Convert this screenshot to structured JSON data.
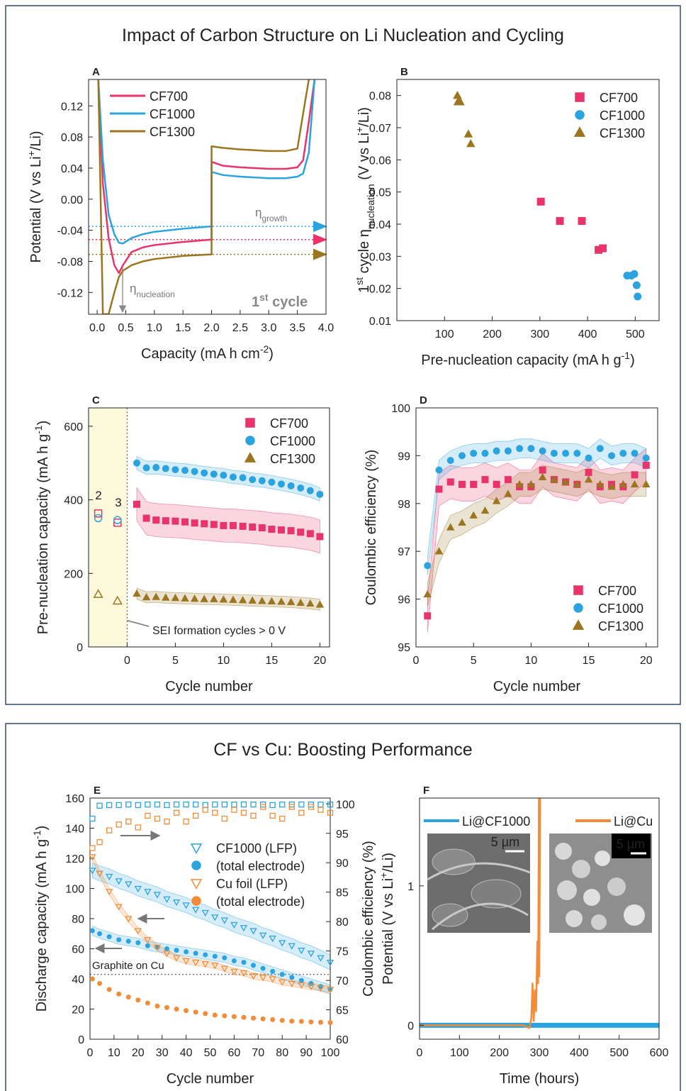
{
  "sections": [
    {
      "title": "Impact of Carbon Structure on Li Nucleation and Cycling"
    },
    {
      "title": "CF vs Cu: Boosting Performance"
    }
  ],
  "chart_data": [
    {
      "type": "line",
      "label": "A",
      "xlabel": [
        {
          "text": "Capacity (mA h cm"
        },
        {
          "text": "-2",
          "style": "sup"
        },
        {
          "text": ")"
        }
      ],
      "ylabel": [
        {
          "text": "Potential (V vs Li"
        },
        {
          "text": "+",
          "style": "sup"
        },
        {
          "text": "/Li)"
        }
      ],
      "xlim": [
        -0.15,
        4.0
      ],
      "ylim": [
        -0.148,
        0.154
      ],
      "xticks": [
        {
          "value": 0,
          "label": "0.0"
        },
        0.5,
        {
          "value": 1,
          "label": "1.0"
        },
        1.5,
        {
          "value": 2,
          "label": "2.0"
        },
        2.5,
        {
          "value": 3,
          "label": "3.0"
        },
        3.5,
        {
          "value": 4,
          "label": "4.0"
        }
      ],
      "yticks": [
        -0.12,
        -0.08,
        -0.04,
        {
          "value": 0,
          "label": "0.00"
        },
        0.04,
        0.08,
        0.12
      ],
      "x": [
        0.02,
        0.1,
        0.2,
        0.3,
        0.38,
        0.45,
        0.6,
        0.8,
        1.0,
        1.5,
        2.0,
        2.0,
        2.2,
        2.5,
        3.0,
        3.3,
        3.5,
        3.6,
        3.7,
        3.8
      ],
      "series": [
        {
          "name": "CF700",
          "color": "#e8336b",
          "values": [
            0.154,
            0.02,
            -0.05,
            -0.085,
            -0.095,
            -0.085,
            -0.068,
            -0.062,
            -0.059,
            -0.055,
            -0.052,
            0.048,
            0.043,
            0.041,
            0.039,
            0.039,
            0.041,
            0.05,
            0.1,
            0.154
          ]
        },
        {
          "name": "CF1000",
          "color": "#2ba3de",
          "values": [
            0.154,
            0.05,
            -0.02,
            -0.045,
            -0.056,
            -0.057,
            -0.05,
            -0.045,
            -0.042,
            -0.038,
            -0.035,
            0.035,
            0.031,
            0.029,
            0.027,
            0.027,
            0.029,
            0.033,
            0.06,
            0.154
          ]
        },
        {
          "name": "CF1300",
          "color": "#9b7520",
          "values": [
            0.154,
            -0.148,
            -0.148,
            -0.12,
            -0.1,
            -0.092,
            -0.085,
            -0.08,
            -0.077,
            -0.073,
            -0.071,
            0.068,
            0.066,
            0.064,
            0.062,
            0.062,
            0.065,
            0.11,
            0.154,
            null
          ]
        }
      ],
      "legend": "upper left",
      "hlines": [
        {
          "value": -0.035,
          "color": "#2ba3de"
        },
        {
          "value": -0.052,
          "color": "#e8336b"
        },
        {
          "value": -0.071,
          "color": "#9b7520"
        }
      ],
      "annotations": [
        [
          {
            "text": "η"
          },
          {
            "text": "growth",
            "style": "sub"
          }
        ],
        [
          {
            "text": "η"
          },
          {
            "text": "nucleation",
            "style": "sub"
          }
        ],
        [
          {
            "text": "1"
          },
          {
            "text": "st",
            "style": "sup"
          },
          {
            "text": " cycle"
          }
        ]
      ]
    },
    {
      "type": "scatter",
      "label": "B",
      "xlabel": [
        {
          "text": "Pre-nucleation capacity (mA h g"
        },
        {
          "text": "-1",
          "style": "sup"
        },
        {
          "text": ")"
        }
      ],
      "ylabel": [
        {
          "text": "1"
        },
        {
          "text": "st",
          "style": "sup"
        },
        {
          "text": " cycle η"
        },
        {
          "text": "nucleation",
          "style": "sub"
        },
        {
          "text": " (V vs Li"
        },
        {
          "text": "+",
          "style": "sup"
        },
        {
          "text": "/Li)"
        }
      ],
      "xlim": [
        0,
        550
      ],
      "ylim": [
        0.01,
        0.085
      ],
      "xticks": [
        100,
        200,
        300,
        400,
        500
      ],
      "yticks": [
        0.01,
        0.02,
        0.03,
        0.04,
        0.05,
        0.06,
        0.07,
        0.08
      ],
      "series": [
        {
          "name": "CF700",
          "color": "#e8336b",
          "marker": "square",
          "filled": true,
          "x": [
            302,
            342,
            388,
            423,
            432
          ],
          "values": [
            0.047,
            0.041,
            0.041,
            0.032,
            0.0325
          ]
        },
        {
          "name": "CF1000",
          "color": "#2ba3de",
          "marker": "circle",
          "filled": true,
          "x": [
            483,
            492,
            498,
            503,
            505
          ],
          "values": [
            0.024,
            0.024,
            0.0245,
            0.021,
            0.0175
          ]
        },
        {
          "name": "CF1300",
          "color": "#9b7520",
          "marker": "triangle",
          "filled": true,
          "x": [
            127,
            128,
            133,
            150,
            155
          ],
          "values": [
            0.08,
            0.078,
            0.078,
            0.068,
            0.065
          ]
        }
      ],
      "legend": "upper right"
    },
    {
      "type": "scatter",
      "label": "C",
      "xlabel": [
        {
          "text": "Cycle number"
        }
      ],
      "ylabel": [
        {
          "text": "Pre-nucleation capacity (mA h g"
        },
        {
          "text": "-1",
          "style": "sup"
        },
        {
          "text": ")"
        }
      ],
      "xlim": [
        -4,
        21
      ],
      "ylim": [
        0,
        650
      ],
      "xticks": [
        0,
        5,
        10,
        15,
        20
      ],
      "yticks": [
        0,
        200,
        400,
        600
      ],
      "x": [
        1,
        2,
        3,
        4,
        5,
        6,
        7,
        8,
        9,
        10,
        11,
        12,
        13,
        14,
        15,
        16,
        17,
        18,
        19,
        20
      ],
      "series": [
        {
          "name": "CF700",
          "color": "#e8336b",
          "marker": "square",
          "filled": true,
          "error": 45,
          "values": [
            388,
            350,
            345,
            343,
            342,
            340,
            337,
            335,
            333,
            330,
            330,
            328,
            326,
            324,
            320,
            318,
            316,
            312,
            308,
            300
          ],
          "formation": {
            "x": [
              -3,
              -1
            ],
            "values": [
              363,
              338
            ]
          }
        },
        {
          "name": "CF1000",
          "color": "#2ba3de",
          "marker": "circle",
          "filled": true,
          "error": 18,
          "values": [
            500,
            487,
            488,
            485,
            482,
            480,
            477,
            473,
            470,
            467,
            462,
            460,
            455,
            452,
            448,
            443,
            438,
            432,
            425,
            415
          ],
          "formation": {
            "x": [
              -3,
              -1
            ],
            "values": [
              350,
              345
            ]
          }
        },
        {
          "name": "CF1300",
          "color": "#9b7520",
          "marker": "triangle",
          "filled": true,
          "error": 15,
          "values": [
            145,
            135,
            136,
            134,
            133,
            132,
            131,
            130,
            130,
            129,
            128,
            127,
            126,
            125,
            124,
            123,
            122,
            120,
            118,
            115
          ],
          "formation": {
            "x": [
              -3,
              -1
            ],
            "values": [
              143,
              125
            ]
          }
        }
      ],
      "legend": "upper right",
      "shade_xrange": [
        -4,
        0
      ],
      "vline": 0,
      "annotations": [
        "2",
        "3",
        "SEI formation cycles > 0 V"
      ]
    },
    {
      "type": "scatter",
      "label": "D",
      "xlabel": [
        {
          "text": "Cycle number"
        }
      ],
      "ylabel": [
        {
          "text": "Coulombic efficiency (%)"
        }
      ],
      "xlim": [
        0,
        21
      ],
      "ylim": [
        95,
        100
      ],
      "xticks": [
        0,
        5,
        10,
        15,
        20
      ],
      "yticks": [
        95,
        96,
        97,
        98,
        99,
        100
      ],
      "x": [
        1,
        2,
        3,
        4,
        5,
        6,
        7,
        8,
        9,
        10,
        11,
        12,
        13,
        14,
        15,
        16,
        17,
        18,
        19,
        20
      ],
      "series": [
        {
          "name": "CF700",
          "color": "#e8336b",
          "marker": "square",
          "filled": true,
          "error": 0.35,
          "values": [
            95.65,
            98.3,
            98.45,
            98.4,
            98.4,
            98.5,
            98.4,
            98.5,
            98.35,
            98.35,
            98.7,
            98.5,
            98.45,
            98.4,
            98.65,
            98.35,
            98.4,
            98.35,
            98.6,
            98.8
          ]
        },
        {
          "name": "CF1000",
          "color": "#2ba3de",
          "marker": "circle",
          "filled": true,
          "error": 0.2,
          "values": [
            96.7,
            98.7,
            98.9,
            99.0,
            99.05,
            99.05,
            99.1,
            99.1,
            99.15,
            99.15,
            99.1,
            99.05,
            99.05,
            99.05,
            98.95,
            99.15,
            99.0,
            99.05,
            99.05,
            98.95
          ]
        },
        {
          "name": "CF1300",
          "color": "#9b7520",
          "marker": "triangle",
          "filled": true,
          "error": 0.25,
          "values": [
            96.1,
            97.0,
            97.5,
            97.6,
            97.75,
            97.85,
            98.05,
            98.2,
            98.4,
            98.4,
            98.55,
            98.5,
            98.45,
            98.4,
            98.5,
            98.4,
            98.35,
            98.4,
            98.4,
            98.4
          ]
        }
      ],
      "legend": "lower right"
    },
    {
      "type": "scatter",
      "label": "E",
      "xlabel": [
        {
          "text": "Cycle number"
        }
      ],
      "ylabel": [
        {
          "text": "Discharge capacity (mA h g"
        },
        {
          "text": "-1",
          "style": "sup"
        },
        {
          "text": ")"
        }
      ],
      "y2label": [
        {
          "text": "Coulombic efficiency (%)"
        }
      ],
      "xlim": [
        0,
        100
      ],
      "ylim": [
        0,
        160
      ],
      "y2lim": [
        60,
        101
      ],
      "xticks": [
        0,
        10,
        20,
        30,
        40,
        50,
        60,
        70,
        80,
        90,
        100
      ],
      "yticks": [
        0,
        20,
        40,
        60,
        80,
        100,
        120,
        140,
        160
      ],
      "y2ticks": [
        60,
        65,
        70,
        75,
        80,
        85,
        90,
        95,
        100
      ],
      "x": [
        1,
        4,
        8,
        12,
        16,
        20,
        24,
        28,
        32,
        36,
        40,
        44,
        48,
        52,
        56,
        60,
        64,
        68,
        72,
        76,
        80,
        84,
        88,
        92,
        96,
        100
      ],
      "series": [
        {
          "name": "CF1000 (LFP)",
          "color": "#2ba3de",
          "marker": "triangle-down",
          "filled": false,
          "error": 5,
          "values": [
            112,
            110,
            108,
            105,
            103,
            100,
            98,
            96,
            93,
            91,
            89,
            86,
            84,
            81,
            79,
            76,
            74,
            72,
            69,
            67,
            64,
            62,
            59,
            57,
            54,
            51
          ]
        },
        {
          "name": "(total electrode)",
          "color": "#2ba3de",
          "marker": "circle",
          "filled": true,
          "error": 3,
          "values": [
            72,
            70,
            68,
            66,
            65,
            64,
            62,
            61,
            60,
            59,
            58,
            57,
            56,
            55,
            54,
            52,
            51,
            49,
            47,
            45,
            43,
            41,
            39,
            37,
            35,
            33
          ]
        },
        {
          "name": "Cu foil (LFP)",
          "color": "#f28c38",
          "marker": "triangle-down",
          "filled": false,
          "error": 2,
          "values": [
            121,
            110,
            98,
            88,
            80,
            72,
            66,
            61,
            57,
            54,
            52,
            51,
            50,
            49,
            47,
            45,
            44,
            42,
            41,
            40,
            38,
            37,
            36,
            35,
            34,
            33
          ]
        },
        {
          "name": "(total electrode)",
          "color": "#f28c38",
          "marker": "circle",
          "filled": true,
          "values": [
            40,
            37,
            33,
            30,
            28,
            26,
            24,
            22,
            21,
            20,
            19,
            18,
            17,
            16,
            15.5,
            15,
            14.5,
            14,
            13.5,
            13,
            12.5,
            12,
            11.8,
            11.5,
            11.2,
            11
          ]
        },
        {
          "color": "#2ba3de",
          "marker": "square",
          "filled": false,
          "axis": "y2",
          "values": [
            97.5,
            99.7,
            99.8,
            99.8,
            99.9,
            99.8,
            99.9,
            99.9,
            99.8,
            99.9,
            99.9,
            99.9,
            99.8,
            99.9,
            99.9,
            99.9,
            99.9,
            99.9,
            99.9,
            99.8,
            99.9,
            99.9,
            99.9,
            99.9,
            99.9,
            99.9
          ]
        },
        {
          "color": "#f28c38",
          "marker": "square",
          "filled": false,
          "axis": "y2",
          "values": [
            92.5,
            93.5,
            95.5,
            96.5,
            97,
            96,
            98,
            97.5,
            97,
            98.5,
            97,
            98,
            99,
            98.5,
            97.5,
            99,
            98.5,
            98,
            99.5,
            98,
            97.5,
            99.5,
            98.5,
            99.5,
            99,
            98.5
          ]
        }
      ],
      "legend": "upper right",
      "hlines": [
        {
          "value": 43,
          "color": "#777777"
        }
      ],
      "annotations": [
        "Graphite on Cu"
      ]
    },
    {
      "type": "line",
      "label": "F",
      "xlabel": [
        {
          "text": "Time (hours)"
        }
      ],
      "ylabel": [
        {
          "text": "Potential (V vs Li"
        },
        {
          "text": "+",
          "style": "sup"
        },
        {
          "text": "/Li)"
        }
      ],
      "xlim": [
        0,
        600
      ],
      "ylim": [
        -0.1,
        1.63
      ],
      "xticks": [
        0,
        100,
        200,
        300,
        400,
        500,
        600
      ],
      "yticks": [
        0,
        1
      ],
      "series": [
        {
          "name": "Li@CF1000",
          "color": "#2ba3de",
          "x": [
            0,
            600
          ],
          "values": [
            0,
            0
          ]
        },
        {
          "name": "Li@Cu",
          "color": "#f28c38",
          "x": [
            0,
            100,
            200,
            260,
            275,
            280,
            283,
            286,
            289,
            292,
            295,
            297,
            299,
            300,
            302
          ],
          "values": [
            0,
            0,
            0,
            0,
            -0.02,
            0.05,
            0.3,
            0.03,
            0.25,
            0.1,
            0.6,
            0.3,
            1.63,
            0.35,
            1.63
          ]
        }
      ],
      "legend": "upper",
      "annotations": [
        "5 µm",
        "5 µm"
      ]
    }
  ]
}
